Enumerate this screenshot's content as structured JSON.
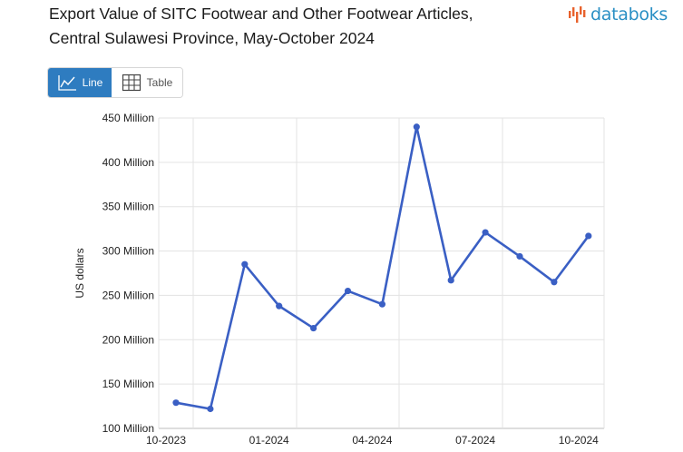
{
  "header": {
    "title_line1": "Export Value of SITC Footwear and Other Footwear Articles,",
    "title_line2": "Central Sulawesi Province, May-October 2024",
    "logo_text": "databoks",
    "logo_icon": "databoks-bars-icon"
  },
  "view_toggle": {
    "line_label": "Line",
    "table_label": "Table",
    "active": "line",
    "active_color": "#2e7cc0"
  },
  "chart_data": {
    "type": "line",
    "title": "",
    "xlabel": "",
    "ylabel": "US dollars",
    "ylim": [
      100000000,
      450000000
    ],
    "y_ticks": [
      {
        "value": 100000000,
        "label": "100 Million"
      },
      {
        "value": 150000000,
        "label": "150 Million"
      },
      {
        "value": 200000000,
        "label": "200 Million"
      },
      {
        "value": 250000000,
        "label": "250 Million"
      },
      {
        "value": 300000000,
        "label": "300 Million"
      },
      {
        "value": 350000000,
        "label": "350 Million"
      },
      {
        "value": 400000000,
        "label": "400 Million"
      },
      {
        "value": 450000000,
        "label": "450 Million"
      }
    ],
    "x_ticks": [
      "10-2023",
      "01-2024",
      "04-2024",
      "07-2024",
      "10-2024"
    ],
    "x": [
      "10-2023",
      "11-2023",
      "12-2023",
      "01-2024",
      "02-2024",
      "03-2024",
      "04-2024",
      "05-2024",
      "06-2024",
      "07-2024",
      "08-2024",
      "09-2024",
      "10-2024"
    ],
    "series": [
      {
        "color": "#3a5fc4",
        "values": [
          129000000,
          122000000,
          285000000,
          238000000,
          213000000,
          255000000,
          240000000,
          440000000,
          267000000,
          321000000,
          294000000,
          265000000,
          317000000
        ]
      }
    ],
    "grid": true,
    "legend": "none"
  }
}
